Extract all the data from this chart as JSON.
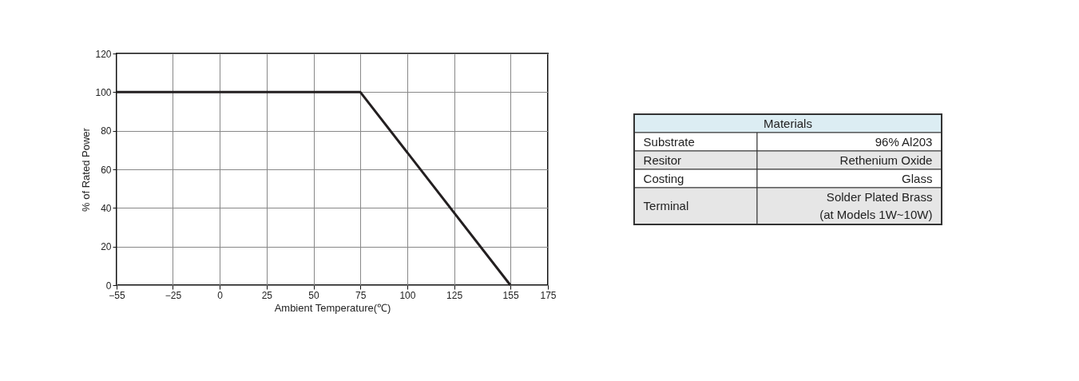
{
  "chart_data": [
    {
      "type": "line",
      "xlabel": "Ambient Temperature(℃)",
      "ylabel": "% of Rated Power",
      "x": [
        -55,
        75,
        155
      ],
      "series": [
        {
          "color": "#231f20",
          "values": [
            100,
            100,
            0
          ]
        }
      ],
      "xlim": [
        -55,
        175
      ],
      "xticks": [
        -55,
        -25,
        0,
        25,
        50,
        75,
        100,
        125,
        155,
        175
      ],
      "ylim": [
        0,
        120
      ],
      "yticks": [
        0,
        20,
        40,
        60,
        80,
        100,
        120
      ],
      "grid": true,
      "marker": "none",
      "line_style": "solid"
    },
    {
      "type": "other",
      "title": "Materials",
      "categories": [
        "Substrate",
        "Resitor",
        "Costing",
        "Terminal"
      ],
      "annotations": [
        "96% Al203",
        "Rethenium Oxide",
        "Glass",
        "Solder Plated Brass\n(at Models 1W~10W)"
      ],
      "color": "#dcedf3",
      "colors": [
        "#ffffff",
        "#e6e6e6",
        "#ffffff",
        "#e6e6e6"
      ]
    }
  ]
}
